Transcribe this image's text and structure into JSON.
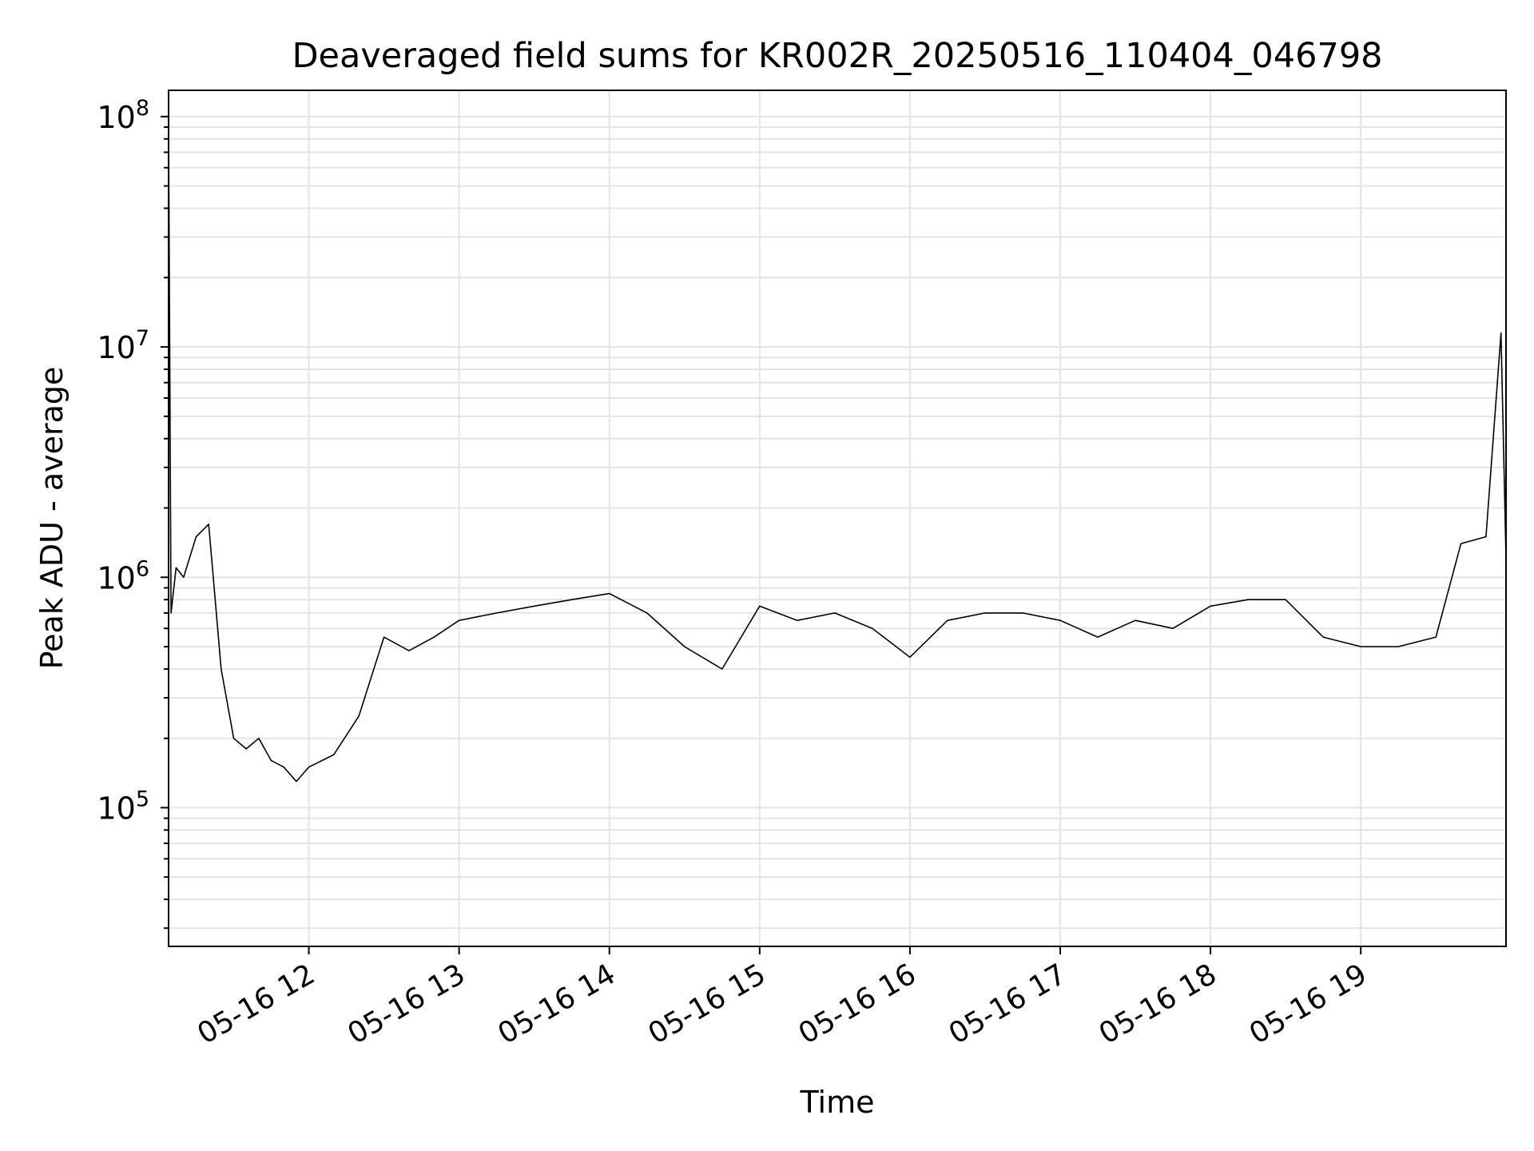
{
  "chart_data": {
    "type": "line",
    "title": "Deaveraged field sums for KR002R_20250516_110404_046798",
    "xlabel": "Time",
    "ylabel": "Peak ADU - average",
    "yscale": "log",
    "xlim": [
      "05-16 11:04",
      "05-16 19:58"
    ],
    "ylim": [
      25000,
      130000000
    ],
    "x_ticks": [
      "05-16 12",
      "05-16 13",
      "05-16 14",
      "05-16 15",
      "05-16 16",
      "05-16 17",
      "05-16 18",
      "05-16 19"
    ],
    "y_ticks": [
      {
        "base": "10",
        "exp": "5",
        "value": 100000
      },
      {
        "base": "10",
        "exp": "6",
        "value": 1000000
      },
      {
        "base": "10",
        "exp": "7",
        "value": 10000000
      },
      {
        "base": "10",
        "exp": "8",
        "value": 100000000
      }
    ],
    "grid": true,
    "line_color": "#000000",
    "series": [
      {
        "x": [
          "05-16 11:04",
          "05-16 11:05",
          "05-16 11:07",
          "05-16 11:10",
          "05-16 11:15",
          "05-16 11:20",
          "05-16 11:25",
          "05-16 11:30",
          "05-16 11:35",
          "05-16 11:40",
          "05-16 11:45",
          "05-16 11:50",
          "05-16 11:55",
          "05-16 12:00",
          "05-16 12:10",
          "05-16 12:20",
          "05-16 12:30",
          "05-16 12:40",
          "05-16 12:50",
          "05-16 13:00",
          "05-16 13:15",
          "05-16 13:30",
          "05-16 13:45",
          "05-16 14:00",
          "05-16 14:15",
          "05-16 14:30",
          "05-16 14:45",
          "05-16 15:00",
          "05-16 15:15",
          "05-16 15:30",
          "05-16 15:45",
          "05-16 16:00",
          "05-16 16:15",
          "05-16 16:30",
          "05-16 16:45",
          "05-16 17:00",
          "05-16 17:15",
          "05-16 17:30",
          "05-16 17:45",
          "05-16 18:00",
          "05-16 18:15",
          "05-16 18:30",
          "05-16 18:45",
          "05-16 19:00",
          "05-16 19:15",
          "05-16 19:30",
          "05-16 19:40",
          "05-16 19:50",
          "05-16 19:56",
          "05-16 19:58"
        ],
        "y": [
          90000000,
          700000,
          1100000,
          1000000,
          1500000,
          1700000,
          400000,
          200000,
          180000,
          200000,
          160000,
          150000,
          130000,
          150000,
          170000,
          250000,
          550000,
          480000,
          550000,
          650000,
          700000,
          750000,
          800000,
          850000,
          700000,
          500000,
          400000,
          750000,
          650000,
          700000,
          600000,
          450000,
          650000,
          700000,
          700000,
          650000,
          550000,
          650000,
          600000,
          750000,
          800000,
          800000,
          550000,
          500000,
          500000,
          550000,
          1400000,
          1500000,
          11500000,
          1200000
        ]
      }
    ]
  }
}
